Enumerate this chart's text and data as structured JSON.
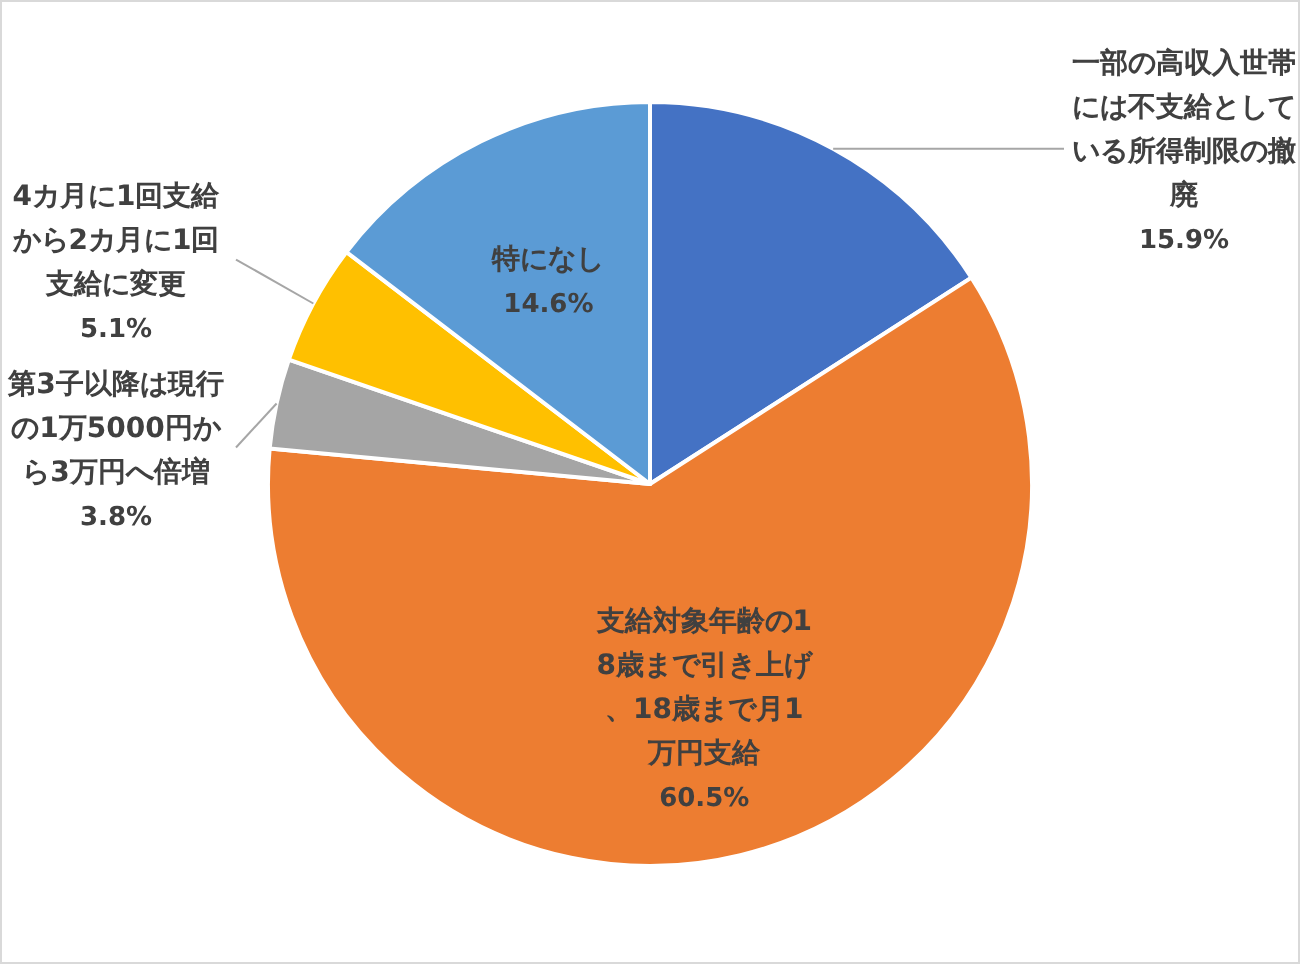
{
  "chart_data": {
    "type": "pie",
    "categories": [
      "一部の高収入世帯には不支給としている所得制限の撤廃",
      "支給対象年齢の18歳まで引き上げ、18歳まで月1万円支給",
      "第3子以降は現行の1万5000円から3万円へ倍増",
      "4カ月に1回支給から2カ月に1回支給に変更",
      "特になし"
    ],
    "values": [
      15.9,
      60.5,
      3.8,
      5.1,
      14.6
    ],
    "colors": [
      "#4472c4",
      "#ed7d31",
      "#a5a5a5",
      "#ffc000",
      "#5b9bd5"
    ],
    "value_labels": [
      "15.9%",
      "60.5%",
      "3.8%",
      "5.1%",
      "14.6%"
    ]
  }
}
